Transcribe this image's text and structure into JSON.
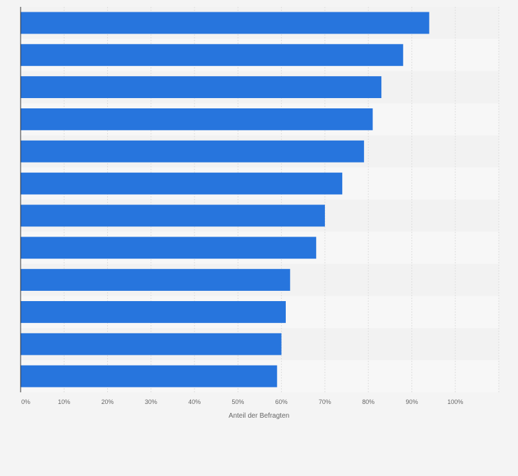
{
  "chart_data": {
    "type": "bar",
    "orientation": "horizontal",
    "title": "",
    "xlabel": "Anteil der Befragten",
    "ylabel": "",
    "xlim": [
      0,
      110
    ],
    "ticks": [
      0,
      10,
      20,
      30,
      40,
      50,
      60,
      70,
      80,
      90,
      100
    ],
    "tick_labels": [
      "0%",
      "10%",
      "20%",
      "30%",
      "40%",
      "50%",
      "60%",
      "70%",
      "80%",
      "90%",
      "100%"
    ],
    "categories": [
      "",
      "",
      "",
      "",
      "",
      "",
      "",
      "",
      "",
      "",
      "",
      ""
    ],
    "values": [
      94,
      88,
      83,
      81,
      79,
      74,
      70,
      68,
      62,
      61,
      60,
      59
    ],
    "bar_color": "#2775dd",
    "grid": true
  }
}
